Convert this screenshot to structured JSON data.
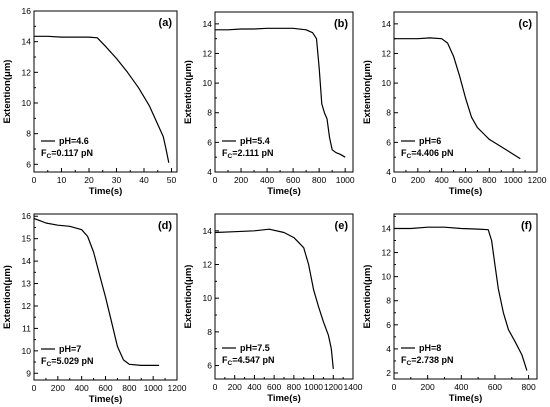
{
  "chart_data": [
    {
      "type": "line",
      "panel_label": "(a)",
      "xlabel": "Time(s)",
      "ylabel": "Extention(μm)",
      "xlim": [
        0,
        52
      ],
      "ylim": [
        5.5,
        16
      ],
      "xticks": [
        0,
        10,
        20,
        30,
        40,
        50
      ],
      "yticks": [
        6,
        8,
        10,
        12,
        14,
        16
      ],
      "legend": {
        "line1": "pH=4.6",
        "line2_prefix": "F",
        "line2_sub": "C",
        "line2_value": "=0.117 pN",
        "placement": "bottom-left"
      },
      "series": [
        {
          "x": [
            0,
            5,
            10,
            15,
            20,
            23,
            26,
            30,
            34,
            38,
            42,
            45,
            47,
            48,
            49
          ],
          "y": [
            14.35,
            14.35,
            14.3,
            14.3,
            14.3,
            14.25,
            13.7,
            12.9,
            12.0,
            11.0,
            9.8,
            8.6,
            7.8,
            7.0,
            6.1
          ]
        }
      ]
    },
    {
      "type": "line",
      "panel_label": "(b)",
      "xlabel": "Time(s)",
      "ylabel": "Extention(μm)",
      "xlim": [
        0,
        1060
      ],
      "ylim": [
        4,
        14.8
      ],
      "xticks": [
        0,
        200,
        400,
        600,
        800,
        1000
      ],
      "yticks": [
        4,
        6,
        8,
        10,
        12,
        14
      ],
      "legend": {
        "line1": "pH=5.4",
        "line2_prefix": "F",
        "line2_sub": "C",
        "line2_value": "=2.111 pN",
        "placement": "bottom-left"
      },
      "series": [
        {
          "x": [
            0,
            100,
            200,
            300,
            400,
            500,
            600,
            700,
            750,
            780,
            800,
            820,
            840,
            860,
            880,
            900,
            930,
            960,
            1000
          ],
          "y": [
            13.6,
            13.6,
            13.65,
            13.65,
            13.7,
            13.7,
            13.7,
            13.6,
            13.4,
            13.0,
            11.0,
            8.6,
            8.0,
            7.6,
            6.3,
            5.5,
            5.3,
            5.2,
            5.0
          ]
        }
      ]
    },
    {
      "type": "line",
      "panel_label": "(c)",
      "xlabel": "Time(s)",
      "ylabel": "Extention(μm)",
      "xlim": [
        0,
        1200
      ],
      "ylim": [
        4,
        14.8
      ],
      "xticks": [
        0,
        200,
        400,
        600,
        800,
        1000,
        1200
      ],
      "yticks": [
        4,
        6,
        8,
        10,
        12,
        14
      ],
      "legend": {
        "line1": "pH=6",
        "line2_prefix": "F",
        "line2_sub": "C",
        "line2_value": "=4.406 pN",
        "placement": "bottom-left"
      },
      "series": [
        {
          "x": [
            0,
            100,
            200,
            300,
            400,
            450,
            500,
            550,
            600,
            650,
            700,
            750,
            800,
            900,
            1000,
            1060
          ],
          "y": [
            13.0,
            13.0,
            13.0,
            13.05,
            13.0,
            12.7,
            11.8,
            10.5,
            9.0,
            7.7,
            7.0,
            6.6,
            6.2,
            5.7,
            5.2,
            4.9
          ]
        }
      ]
    },
    {
      "type": "line",
      "panel_label": "(d)",
      "xlabel": "Time(s)",
      "ylabel": "Extention(μm)",
      "xlim": [
        0,
        1200
      ],
      "ylim": [
        8.7,
        16.1
      ],
      "xticks": [
        0,
        200,
        400,
        600,
        800,
        1000,
        1200
      ],
      "yticks": [
        9,
        10,
        11,
        12,
        13,
        14,
        15,
        16
      ],
      "legend": {
        "line1": "pH=7",
        "line2_prefix": "F",
        "line2_sub": "C",
        "line2_value": "=5.029 pN",
        "placement": "bottom-left"
      },
      "series": [
        {
          "x": [
            0,
            50,
            100,
            200,
            300,
            400,
            450,
            500,
            550,
            600,
            650,
            700,
            750,
            800,
            900,
            1050
          ],
          "y": [
            15.9,
            15.8,
            15.7,
            15.6,
            15.55,
            15.4,
            15.1,
            14.4,
            13.4,
            12.4,
            11.3,
            10.2,
            9.6,
            9.4,
            9.35,
            9.35
          ]
        }
      ]
    },
    {
      "type": "line",
      "panel_label": "(e)",
      "xlabel": "Time(s)",
      "ylabel": "Extention(μm)",
      "xlim": [
        0,
        1400
      ],
      "ylim": [
        5.2,
        15
      ],
      "xticks": [
        0,
        200,
        400,
        600,
        800,
        1000,
        1200,
        1400
      ],
      "yticks": [
        6,
        8,
        10,
        12,
        14
      ],
      "legend": {
        "line1": "pH=7.5",
        "line2_prefix": "F",
        "line2_sub": "C",
        "line2_value": "=4.547 pN",
        "placement": "bottom-left"
      },
      "series": [
        {
          "x": [
            0,
            200,
            400,
            550,
            700,
            800,
            900,
            950,
            1000,
            1050,
            1100,
            1150,
            1180,
            1200
          ],
          "y": [
            13.9,
            13.95,
            14.0,
            14.1,
            13.9,
            13.6,
            13.0,
            12.0,
            10.5,
            9.5,
            8.6,
            7.8,
            7.0,
            5.8
          ]
        }
      ]
    },
    {
      "type": "line",
      "panel_label": "(f)",
      "xlabel": "Time(s)",
      "ylabel": "Extention(μm)",
      "xlim": [
        0,
        850
      ],
      "ylim": [
        1.5,
        15.2
      ],
      "xticks": [
        0,
        200,
        400,
        600,
        800
      ],
      "yticks": [
        2,
        4,
        6,
        8,
        10,
        12,
        14
      ],
      "legend": {
        "line1": "pH=8",
        "line2_prefix": "F",
        "line2_sub": "C",
        "line2_value": "=2.738 pN",
        "placement": "bottom-left"
      },
      "series": [
        {
          "x": [
            0,
            100,
            200,
            300,
            400,
            500,
            560,
            580,
            600,
            620,
            650,
            680,
            720,
            760,
            790
          ],
          "y": [
            14.0,
            14.0,
            14.1,
            14.1,
            14.0,
            13.95,
            13.9,
            13.0,
            11.0,
            9.0,
            7.0,
            5.6,
            4.6,
            3.5,
            2.2
          ]
        }
      ]
    }
  ]
}
